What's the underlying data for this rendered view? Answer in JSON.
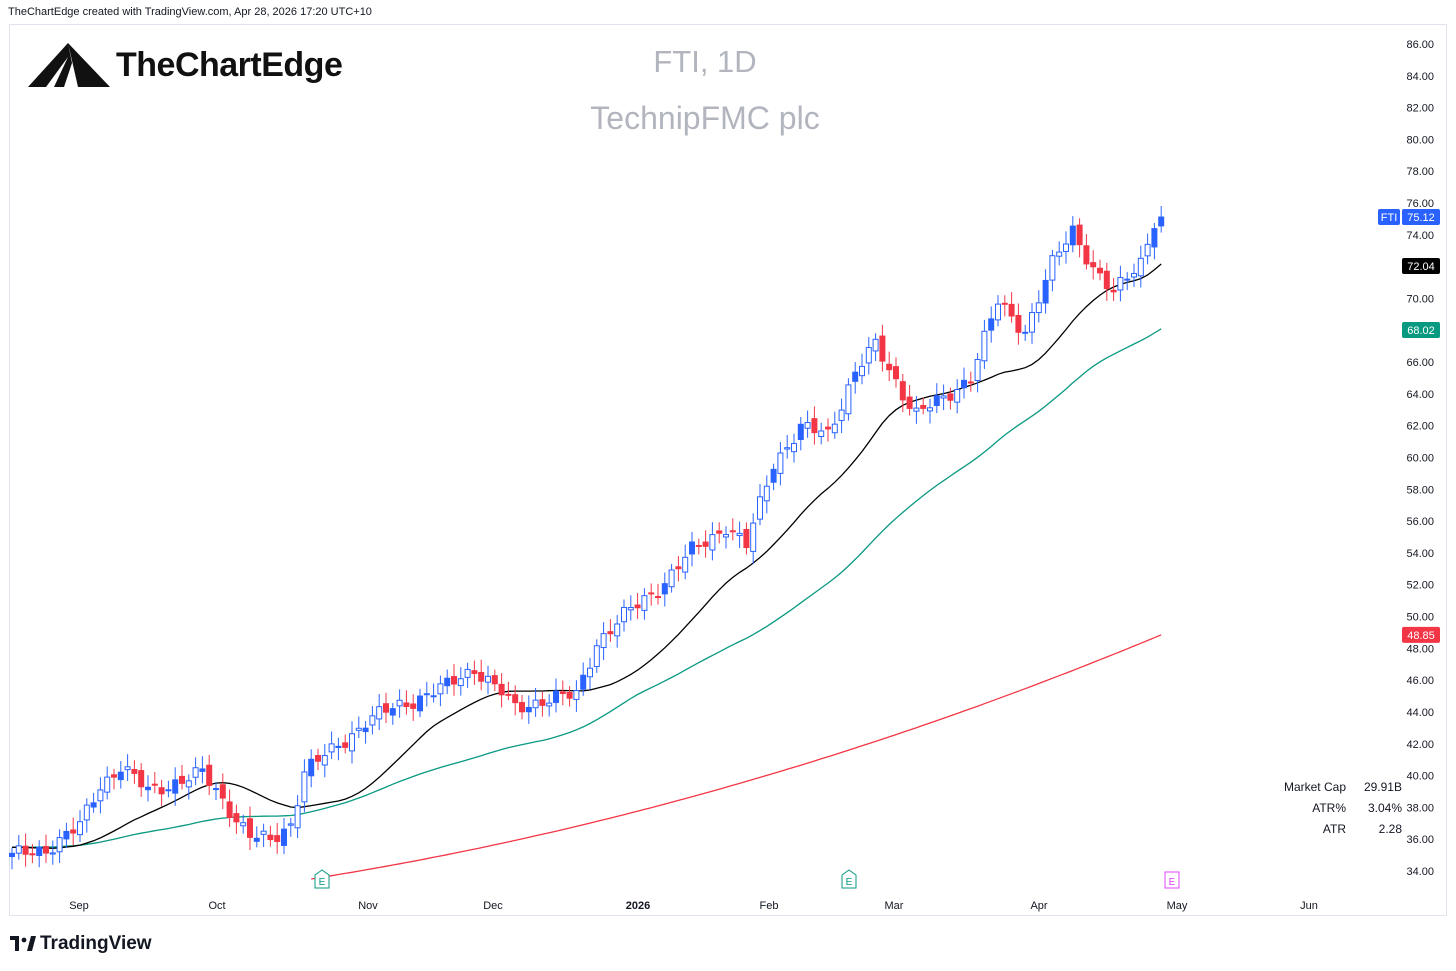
{
  "header": {
    "caption": "TheChartEdge created with TradingView.com, Apr 28, 2026 17:20 UTC+10"
  },
  "brand": {
    "name": "TheChartEdge",
    "logo_icon": "mountain-logo-icon"
  },
  "footer": {
    "name": "TradingView",
    "logo_icon": "tradingview-logo-icon"
  },
  "chart_title": {
    "symbol_interval": "FTI, 1D",
    "company": "TechnipFMC plc"
  },
  "stats": [
    {
      "label": "Market Cap",
      "value": "29.91B"
    },
    {
      "label": "ATR%",
      "value": "3.04%"
    },
    {
      "label": "ATR",
      "value": "2.28"
    }
  ],
  "colors": {
    "up": "#2962ff",
    "down": "#f23645",
    "ma_short": "#000000",
    "ma_mid": "#089981",
    "ma_long": "#f23645",
    "axis_text": "#131722"
  },
  "chart_data": {
    "type": "candlestick",
    "title": "FTI, 1D",
    "subtitle": "TechnipFMC plc",
    "y_axis": {
      "ylim": [
        32.8,
        87.3
      ],
      "ticks": [
        "34.00",
        "36.00",
        "38.00",
        "40.00",
        "42.00",
        "44.00",
        "46.00",
        "48.00",
        "50.00",
        "52.00",
        "54.00",
        "56.00",
        "58.00",
        "60.00",
        "62.00",
        "64.00",
        "66.00",
        "68.00",
        "70.00",
        "72.00",
        "74.00",
        "76.00",
        "78.00",
        "80.00",
        "82.00",
        "84.00",
        "86.00"
      ]
    },
    "x_axis": {
      "labels": [
        "Sep",
        "Oct",
        "Nov",
        "Dec",
        "2026",
        "Feb",
        "Mar",
        "Apr",
        "May",
        "Jun"
      ]
    },
    "last_price": {
      "symbol": "FTI",
      "value": "75.12"
    },
    "ma_labels": {
      "ma_short": "72.04",
      "ma_mid": "68.02",
      "ma_long": "48.85"
    },
    "earnings_markers": [
      {
        "date": "Oct 23",
        "label": "E",
        "type": "past"
      },
      {
        "date": "Feb 19",
        "label": "E",
        "type": "past"
      },
      {
        "date": "Apr 29",
        "label": "E",
        "type": "upcoming"
      }
    ],
    "anchors": [
      {
        "d": 0,
        "c": 34.9
      },
      {
        "d": 5,
        "c": 35.4
      },
      {
        "d": 10,
        "c": 36.8
      },
      {
        "d": 13,
        "c": 39.4
      },
      {
        "d": 16,
        "c": 40.6
      },
      {
        "d": 20,
        "c": 39.0
      },
      {
        "d": 24,
        "c": 39.6
      },
      {
        "d": 28,
        "c": 40.1
      },
      {
        "d": 31,
        "c": 38.5
      },
      {
        "d": 35,
        "c": 36.2
      },
      {
        "d": 38,
        "c": 35.8
      },
      {
        "d": 41,
        "c": 37.0
      },
      {
        "d": 43,
        "c": 40.3
      },
      {
        "d": 47,
        "c": 41.5
      },
      {
        "d": 52,
        "c": 43.4
      },
      {
        "d": 58,
        "c": 44.6
      },
      {
        "d": 64,
        "c": 45.6
      },
      {
        "d": 68,
        "c": 46.8
      },
      {
        "d": 72,
        "c": 45.2
      },
      {
        "d": 74,
        "c": 44.2
      },
      {
        "d": 78,
        "c": 44.8
      },
      {
        "d": 83,
        "c": 45.0
      },
      {
        "d": 86,
        "c": 48.4
      },
      {
        "d": 90,
        "c": 50.0
      },
      {
        "d": 96,
        "c": 52.2
      },
      {
        "d": 100,
        "c": 54.1
      },
      {
        "d": 105,
        "c": 55.7
      },
      {
        "d": 108,
        "c": 54.4
      },
      {
        "d": 112,
        "c": 59.7
      },
      {
        "d": 116,
        "c": 61.8
      },
      {
        "d": 120,
        "c": 61.5
      },
      {
        "d": 124,
        "c": 65.4
      },
      {
        "d": 127,
        "c": 67.0
      },
      {
        "d": 131,
        "c": 64.1
      },
      {
        "d": 133,
        "c": 62.8
      },
      {
        "d": 137,
        "c": 63.6
      },
      {
        "d": 141,
        "c": 65.2
      },
      {
        "d": 145,
        "c": 69.7
      },
      {
        "d": 149,
        "c": 68.0
      },
      {
        "d": 153,
        "c": 72.1
      },
      {
        "d": 156,
        "c": 74.3
      },
      {
        "d": 159,
        "c": 72.0
      },
      {
        "d": 162,
        "c": 70.2
      },
      {
        "d": 166,
        "c": 72.4
      },
      {
        "d": 168,
        "c": 74.9
      },
      {
        "d": 169,
        "c": 75.12
      }
    ]
  }
}
